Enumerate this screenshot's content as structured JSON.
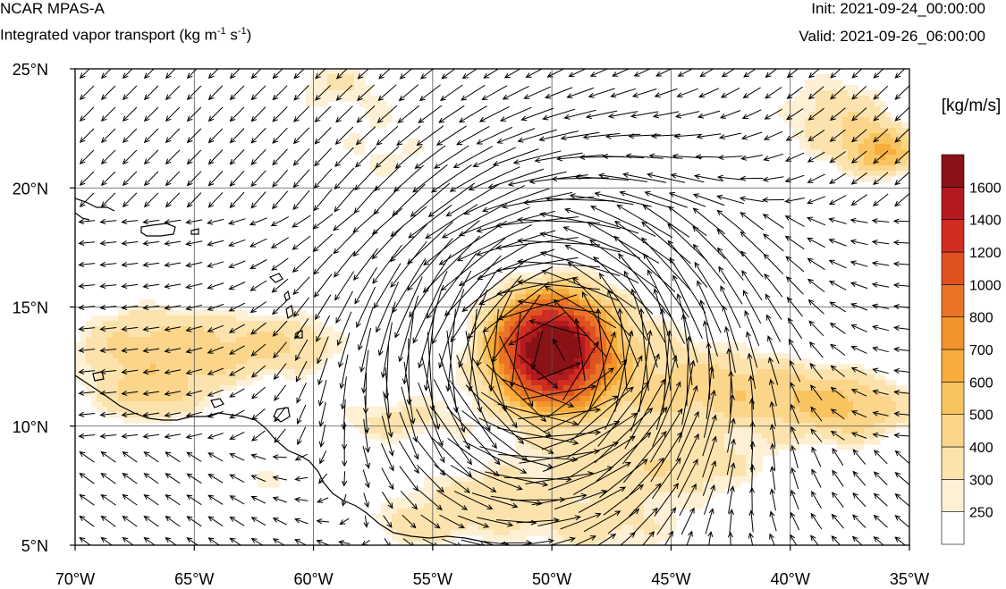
{
  "header": {
    "title": "NCAR MPAS-A",
    "subtitle_main": "Integrated vapor transport (kg m",
    "subtitle_exp1": "-1",
    "subtitle_mid": " s",
    "subtitle_exp2": "-1",
    "subtitle_end": ")",
    "init": "Init: 2021-09-24_00:00:00",
    "valid": "Valid: 2021-09-26_06:00:00"
  },
  "chart_data": {
    "type": "heatmap",
    "title": "Integrated vapor transport",
    "units": "[kg/m/s]",
    "xlim": [
      -70,
      -35
    ],
    "ylim": [
      5,
      25
    ],
    "x_ticks": [
      -70,
      -65,
      -60,
      -55,
      -50,
      -45,
      -40,
      -35
    ],
    "x_tick_labels": [
      "70°W",
      "65°W",
      "60°W",
      "55°W",
      "50°W",
      "45°W",
      "40°W",
      "35°W"
    ],
    "y_ticks": [
      5,
      10,
      15,
      20,
      25
    ],
    "y_tick_labels": [
      "5°N",
      "10°N",
      "15°N",
      "20°N",
      "25°N"
    ],
    "grid": true,
    "storm_center": {
      "lon": -50,
      "lat": 13.2
    },
    "colorbar": {
      "levels": [
        250,
        300,
        400,
        500,
        600,
        700,
        800,
        1000,
        1200,
        1400,
        1600
      ],
      "labels": [
        "250",
        "300",
        "400",
        "500",
        "600",
        "700",
        "800",
        "1000",
        "1200",
        "1400",
        "1600"
      ],
      "colors": [
        "#ffffff",
        "#fdf0d5",
        "#fce3ad",
        "#fbd58a",
        "#f9c360",
        "#f6ad3c",
        "#f2932c",
        "#ea7426",
        "#de5222",
        "#cf2d21",
        "#b21a1e",
        "#8a1216"
      ]
    }
  }
}
